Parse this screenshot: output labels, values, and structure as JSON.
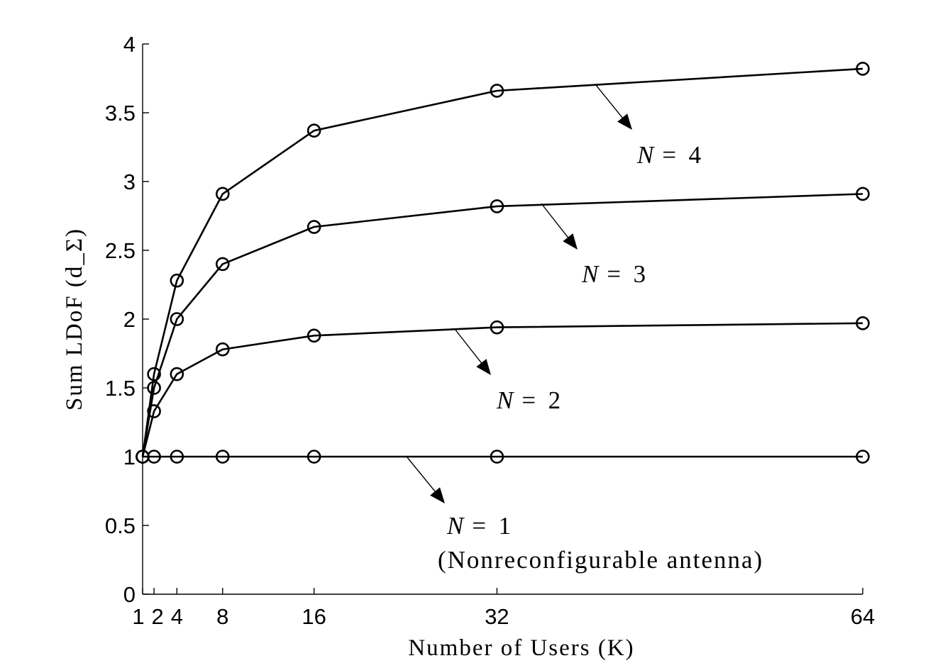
{
  "chart_data": {
    "type": "line",
    "xlabel": "Number of Users (K)",
    "ylabel": "Sum LDoF (d_Σ)",
    "xlim": [
      1,
      64
    ],
    "ylim": [
      0,
      4
    ],
    "x_ticks": [
      1,
      2,
      4,
      8,
      16,
      32,
      64
    ],
    "x_tick_labels": [
      "1",
      "2",
      "4",
      "8",
      "16",
      "32",
      "64"
    ],
    "y_ticks": [
      0,
      0.5,
      1,
      1.5,
      2,
      2.5,
      3,
      3.5,
      4
    ],
    "y_tick_labels": [
      "0",
      "0.5",
      "1",
      "1.5",
      "2",
      "2.5",
      "3",
      "3.5",
      "4"
    ],
    "grid": false,
    "legend": "none",
    "marker": "circle",
    "x": [
      1,
      2,
      4,
      8,
      16,
      32,
      64
    ],
    "series": [
      {
        "values": [
          1,
          1,
          1,
          1,
          1,
          1,
          1
        ]
      },
      {
        "values": [
          1,
          1.33,
          1.6,
          1.78,
          1.88,
          1.94,
          1.97
        ]
      },
      {
        "values": [
          1,
          1.5,
          2.0,
          2.4,
          2.67,
          2.82,
          2.91
        ]
      },
      {
        "values": [
          1,
          1.6,
          2.28,
          2.91,
          3.37,
          3.66,
          3.82
        ]
      }
    ],
    "annotations": [
      {
        "series_index": 3,
        "prefix": "N",
        "text": "= 4",
        "note": ""
      },
      {
        "series_index": 2,
        "prefix": "N",
        "text": "= 3",
        "note": ""
      },
      {
        "series_index": 1,
        "prefix": "N",
        "text": "= 2",
        "note": ""
      },
      {
        "series_index": 0,
        "prefix": "N",
        "text": "= 1",
        "note": "(Nonreconfigurable antenna)"
      }
    ]
  }
}
